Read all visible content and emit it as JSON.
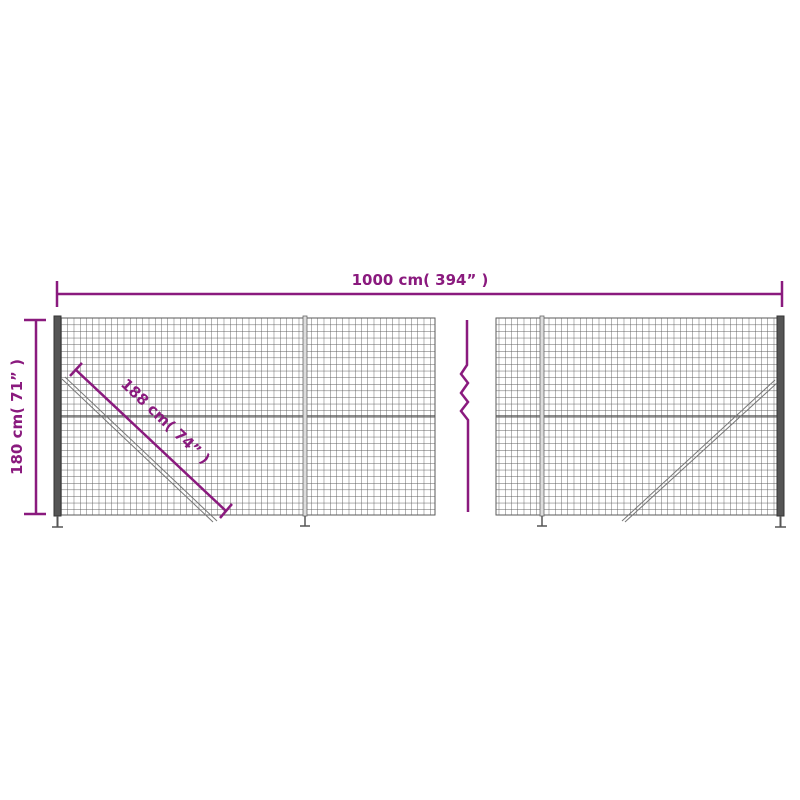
{
  "dimensions": {
    "length_label": "1000 cm( 394” )",
    "height_label": "180 cm( 71” )",
    "brace_label": "188 cm( 74” )"
  },
  "colors": {
    "dimension": "#8a1a7e",
    "mesh": "#5a5a5a",
    "post": "#444444"
  },
  "icons": [
    "break-symbol"
  ]
}
